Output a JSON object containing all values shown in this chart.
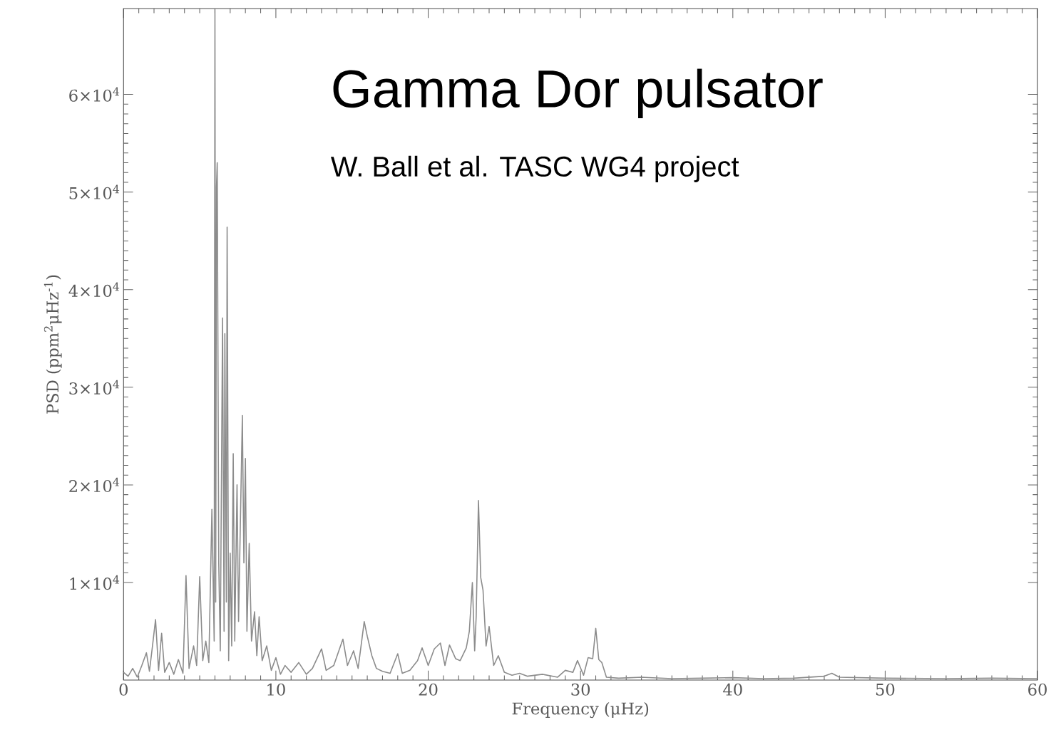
{
  "chart_data": {
    "type": "line",
    "title": "Gamma Dor pulsator",
    "subtitle": "W. Ball et al. TASC WG4 project",
    "xlabel": "Frequency (μHz)",
    "ylabel": "PSD (ppm$^{2}$μHz$^{-1}$)",
    "xlim": [
      0,
      60
    ],
    "ylim": [
      0,
      68800
    ],
    "xticks": [
      0,
      10,
      20,
      30,
      40,
      50,
      60
    ],
    "yticks": [
      {
        "value": 10000,
        "label": "1×10$^{4}$"
      },
      {
        "value": 20000,
        "label": "2×10$^{4}$"
      },
      {
        "value": 30000,
        "label": "3×10$^{4}$"
      },
      {
        "value": 40000,
        "label": "4×10$^{4}$"
      },
      {
        "value": 50000,
        "label": "5×10$^{4}$"
      },
      {
        "value": 60000,
        "label": "6×10$^{4}$"
      }
    ],
    "x": [
      0.0,
      0.3,
      0.6,
      0.9,
      1.2,
      1.5,
      1.7,
      1.9,
      2.1,
      2.3,
      2.5,
      2.7,
      3.0,
      3.3,
      3.6,
      3.9,
      4.1,
      4.3,
      4.6,
      4.8,
      5.0,
      5.2,
      5.4,
      5.6,
      5.8,
      5.95,
      6.0,
      6.05,
      6.1,
      6.15,
      6.25,
      6.35,
      6.5,
      6.6,
      6.65,
      6.75,
      6.8,
      6.9,
      7.0,
      7.1,
      7.2,
      7.3,
      7.45,
      7.55,
      7.8,
      7.9,
      8.0,
      8.1,
      8.25,
      8.4,
      8.6,
      8.75,
      8.9,
      9.1,
      9.4,
      9.7,
      10.0,
      10.3,
      10.6,
      11.0,
      11.5,
      12.0,
      12.4,
      13.0,
      13.3,
      13.8,
      14.4,
      14.7,
      15.1,
      15.4,
      15.8,
      16.0,
      16.3,
      16.6,
      17.0,
      17.5,
      18.0,
      18.3,
      18.8,
      19.3,
      19.6,
      20.0,
      20.4,
      20.8,
      21.1,
      21.4,
      21.8,
      22.1,
      22.5,
      22.7,
      22.9,
      23.05,
      23.15,
      23.3,
      23.45,
      23.6,
      23.8,
      24.0,
      24.3,
      24.6,
      25.0,
      25.5,
      26.0,
      26.5,
      27.5,
      28.5,
      29.0,
      29.5,
      29.8,
      30.2,
      30.5,
      30.8,
      31.0,
      31.2,
      31.4,
      31.7,
      32.5,
      34,
      36,
      38,
      40,
      42,
      44,
      46,
      46.5,
      47,
      50,
      54,
      57,
      60
    ],
    "series": [
      {
        "color": "#8c8c8c",
        "values": [
          800,
          400,
          1200,
          300,
          1500,
          2800,
          900,
          3500,
          6200,
          1000,
          4800,
          800,
          1800,
          600,
          2100,
          700,
          10700,
          1200,
          3500,
          1500,
          10600,
          2000,
          4000,
          1800,
          17500,
          4000,
          68800,
          8000,
          50500,
          53000,
          12000,
          3000,
          37100,
          5000,
          35500,
          8000,
          46400,
          2000,
          13000,
          3500,
          23200,
          4000,
          20000,
          6000,
          27100,
          12000,
          22700,
          5000,
          14000,
          4000,
          7000,
          2500,
          6500,
          2000,
          3500,
          1000,
          2300,
          600,
          1500,
          800,
          1800,
          600,
          1200,
          3200,
          1000,
          1500,
          4200,
          1500,
          3000,
          1200,
          6000,
          4500,
          2500,
          1200,
          900,
          700,
          2700,
          700,
          1000,
          2000,
          3300,
          1500,
          3200,
          3800,
          1500,
          3600,
          2200,
          2000,
          3300,
          5000,
          10000,
          3000,
          6500,
          18400,
          10500,
          9200,
          3500,
          5500,
          1500,
          2500,
          800,
          500,
          700,
          400,
          600,
          300,
          1000,
          800,
          2000,
          500,
          2300,
          2200,
          5300,
          2100,
          1800,
          300,
          200,
          300,
          150,
          200,
          250,
          150,
          200,
          400,
          700,
          300,
          200,
          150,
          200,
          150
        ]
      }
    ]
  }
}
